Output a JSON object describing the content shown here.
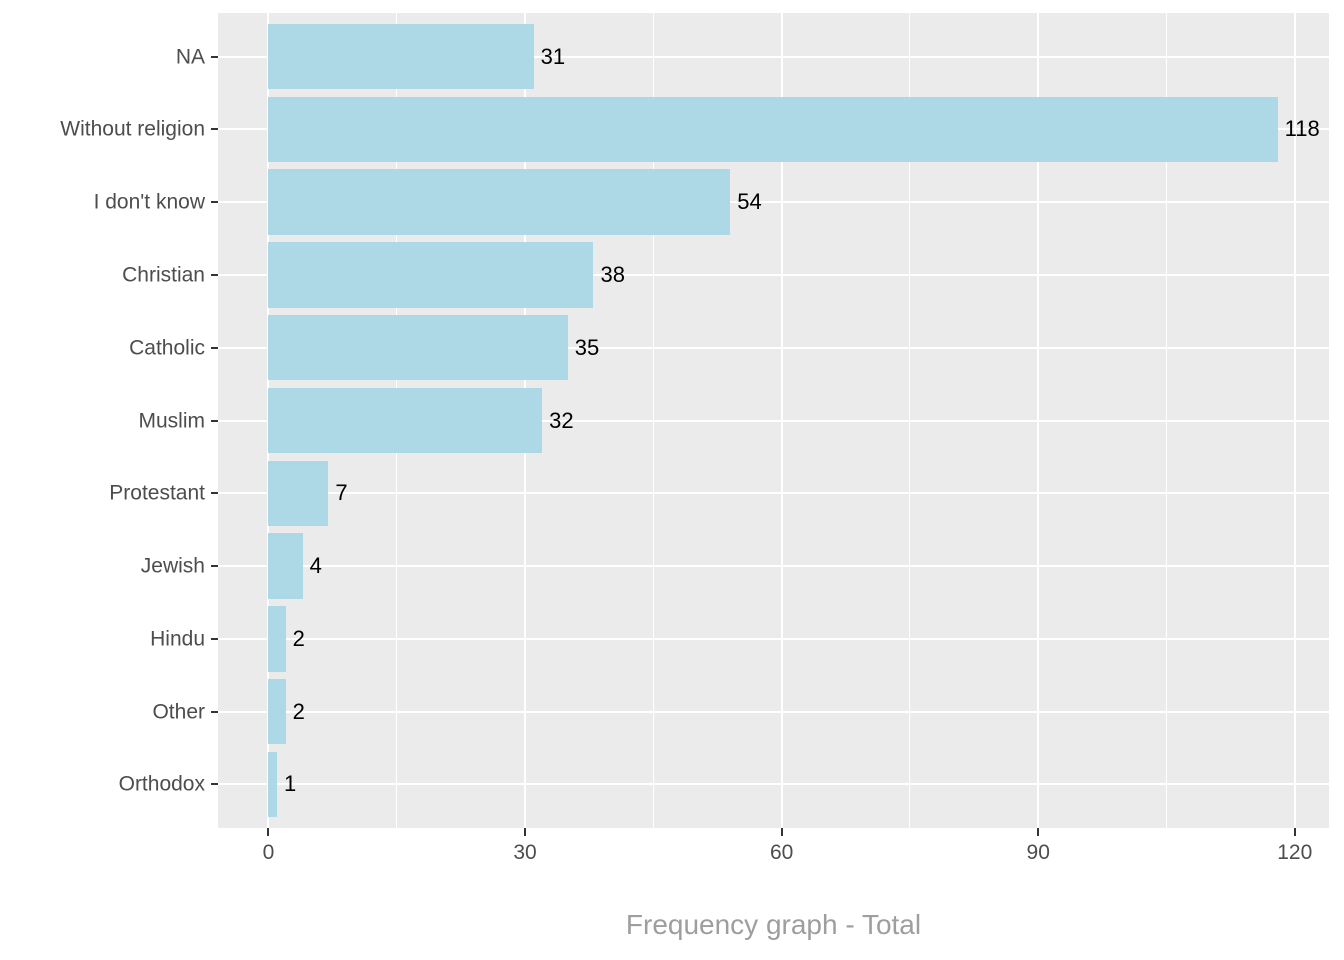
{
  "chart_data": {
    "type": "bar",
    "orientation": "horizontal",
    "title": "",
    "xlabel": "Frequency graph - Total",
    "ylabel": "",
    "categories": [
      "NA",
      "Without religion",
      "I don't know",
      "Christian",
      "Catholic",
      "Muslim",
      "Protestant",
      "Jewish",
      "Hindu",
      "Other",
      "Orthodox"
    ],
    "values": [
      31,
      118,
      54,
      38,
      35,
      32,
      7,
      4,
      2,
      2,
      1
    ],
    "bar_labels": [
      "31",
      "118",
      "54",
      "38",
      "35",
      "32",
      "7",
      "4",
      "2",
      "2",
      "1"
    ],
    "x_ticks": [
      0,
      30,
      60,
      90,
      120
    ],
    "x_tick_labels": [
      "0",
      "30",
      "60",
      "90",
      "120"
    ],
    "x_minor_ticks": [
      15,
      45,
      75,
      105
    ],
    "xlim": [
      -5.9,
      124.0
    ],
    "grid": true,
    "legend": false,
    "bar_width_fraction": 0.9,
    "colors": {
      "bar_fill": "#ADD8E6",
      "panel_background": "#EBEBEB",
      "gridline": "#FFFFFF",
      "axis_text": "#4D4D4D",
      "bar_label_text": "#000000",
      "axis_title_text": "#9E9E9E",
      "tick_mark": "#333333",
      "figure_background": "#FFFFFF"
    }
  }
}
